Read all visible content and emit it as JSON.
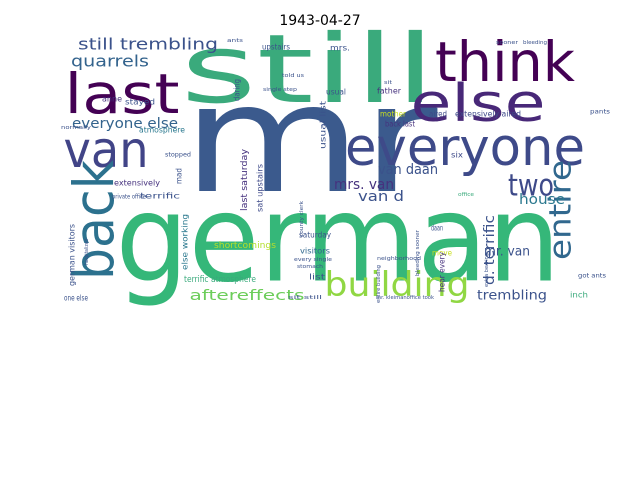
{
  "chart_data": {
    "type": "wordcloud",
    "title": "1943-04-27",
    "words": [
      {
        "text": "mr",
        "weight": 150,
        "color": "#3b5a8d"
      },
      {
        "text": "german",
        "weight": 120,
        "color": "#35b779"
      },
      {
        "text": "still",
        "weight": 95,
        "color": "#3aaa7c"
      },
      {
        "text": "think",
        "weight": 55,
        "color": "#440154"
      },
      {
        "text": "last",
        "weight": 55,
        "color": "#440154"
      },
      {
        "text": "else",
        "weight": 52,
        "color": "#482878"
      },
      {
        "text": "everyone",
        "weight": 52,
        "color": "#3e4a89"
      },
      {
        "text": "van",
        "weight": 50,
        "color": "#414487"
      },
      {
        "text": "back",
        "weight": 55,
        "color": "#2c718e"
      },
      {
        "text": "building",
        "weight": 34,
        "color": "#90d743"
      },
      {
        "text": "two",
        "weight": 30,
        "color": "#3e4a89"
      },
      {
        "text": "entire",
        "weight": 30,
        "color": "#31688e"
      },
      {
        "text": "still trembling",
        "weight": 16,
        "color": "#3b528b"
      },
      {
        "text": "quarrels",
        "weight": 16,
        "color": "#33638d"
      },
      {
        "text": "everyone else",
        "weight": 14,
        "color": "#33638d"
      },
      {
        "text": "van daan",
        "weight": 14,
        "color": "#3b528b"
      },
      {
        "text": "mrs. van",
        "weight": 14,
        "color": "#46327e"
      },
      {
        "text": "van d",
        "weight": 14,
        "color": "#3b528b"
      },
      {
        "text": "d. terrific",
        "weight": 14,
        "color": "#3b528b"
      },
      {
        "text": "house",
        "weight": 14,
        "color": "#2a788e"
      },
      {
        "text": "mr. van",
        "weight": 13,
        "color": "#3b528b"
      },
      {
        "text": "trembling",
        "weight": 13,
        "color": "#3b528b"
      },
      {
        "text": "aftereffects",
        "weight": 14,
        "color": "#6ccd5a"
      },
      {
        "text": "shortcomings",
        "weight": 9,
        "color": "#b5de2b"
      },
      {
        "text": "terrific atmosphere",
        "weight": 9,
        "color": "#3aaa7c"
      },
      {
        "text": "visitors",
        "weight": 8,
        "color": "#31688e"
      },
      {
        "text": "saturday",
        "weight": 8,
        "color": "#3b528b"
      },
      {
        "text": "last saturday",
        "weight": 9,
        "color": "#46327e"
      },
      {
        "text": "sat upstairs",
        "weight": 8,
        "color": "#3e4a89"
      },
      {
        "text": "usual list",
        "weight": 8,
        "color": "#3b528b"
      },
      {
        "text": "father",
        "weight": 8,
        "color": "#46327e"
      },
      {
        "text": "mother",
        "weight": 8,
        "color": "#c8e020"
      },
      {
        "text": "aired",
        "weight": 8,
        "color": "#3e4a89"
      },
      {
        "text": "extensively aired",
        "weight": 8,
        "color": "#3e4a89"
      },
      {
        "text": "back last",
        "weight": 8,
        "color": "#46327e"
      },
      {
        "text": "six",
        "weight": 8,
        "color": "#3e4a89"
      },
      {
        "text": "upstairs",
        "weight": 8,
        "color": "#3b528b"
      },
      {
        "text": "mrs.",
        "weight": 8,
        "color": "#3b528b"
      },
      {
        "text": "stayed",
        "weight": 8,
        "color": "#3b528b"
      },
      {
        "text": "anne",
        "weight": 8,
        "color": "#46327e"
      },
      {
        "text": "atmosphere",
        "weight": 8,
        "color": "#2a788e"
      },
      {
        "text": "extensively",
        "weight": 8,
        "color": "#46327e"
      },
      {
        "text": "terrific",
        "weight": 8,
        "color": "#3b528b"
      },
      {
        "text": "german visitors",
        "weight": 8,
        "color": "#3b528b"
      },
      {
        "text": "hospitalized",
        "weight": 5,
        "color": "#3b528b"
      },
      {
        "text": "else working",
        "weight": 8,
        "color": "#2a788e"
      },
      {
        "text": "one else",
        "weight": 8,
        "color": "#3b528b"
      },
      {
        "text": "inch",
        "weight": 8,
        "color": "#3aaa7c"
      },
      {
        "text": "got ants",
        "weight": 6,
        "color": "#3b528b"
      },
      {
        "text": "pants",
        "weight": 6,
        "color": "#3b528b"
      },
      {
        "text": "list",
        "weight": 8,
        "color": "#3b528b"
      },
      {
        "text": "move",
        "weight": 8,
        "color": "#c8e020"
      },
      {
        "text": "daan",
        "weight": 8,
        "color": "#3b528b"
      },
      {
        "text": "hear every",
        "weight": 8,
        "color": "#46327e"
      },
      {
        "text": "office",
        "weight": 5,
        "color": "#3aaa7c"
      },
      {
        "text": "sit",
        "weight": 5,
        "color": "#3b528b"
      },
      {
        "text": "daring",
        "weight": 8,
        "color": "#3b528b"
      },
      {
        "text": "mad",
        "weight": 8,
        "color": "#3b528b"
      },
      {
        "text": "normally",
        "weight": 5,
        "color": "#3b528b"
      },
      {
        "text": "private office",
        "weight": 6,
        "color": "#3b528b"
      },
      {
        "text": "stopped",
        "weight": 6,
        "color": "#3b528b"
      },
      {
        "text": "usual",
        "weight": 8,
        "color": "#3b528b"
      },
      {
        "text": "neighborhood",
        "weight": 5,
        "color": "#3b528b"
      },
      {
        "text": "entire building",
        "weight": 5,
        "color": "#3b528b"
      },
      {
        "text": "bleeding sooner",
        "weight": 5,
        "color": "#3b528b"
      },
      {
        "text": "sit still",
        "weight": 5,
        "color": "#3b528b"
      },
      {
        "text": "mr. kleimanoffice took",
        "weight": 5,
        "color": "#3b528b"
      },
      {
        "text": "every single",
        "weight": 5,
        "color": "#3b528b"
      },
      {
        "text": "stomach",
        "weight": 5,
        "color": "#3b528b"
      },
      {
        "text": "county clerk",
        "weight": 5,
        "color": "#3b528b"
      },
      {
        "text": "told us",
        "weight": 5,
        "color": "#3b528b"
      },
      {
        "text": "single step",
        "weight": 5,
        "color": "#3b528b"
      },
      {
        "text": "extra bearing",
        "weight": 5,
        "color": "#3b528b"
      },
      {
        "text": "bleeding",
        "weight": 5,
        "color": "#3b528b"
      },
      {
        "text": "sooner",
        "weight": 5,
        "color": "#3b528b"
      },
      {
        "text": "ants",
        "weight": 5,
        "color": "#3b528b"
      }
    ]
  }
}
